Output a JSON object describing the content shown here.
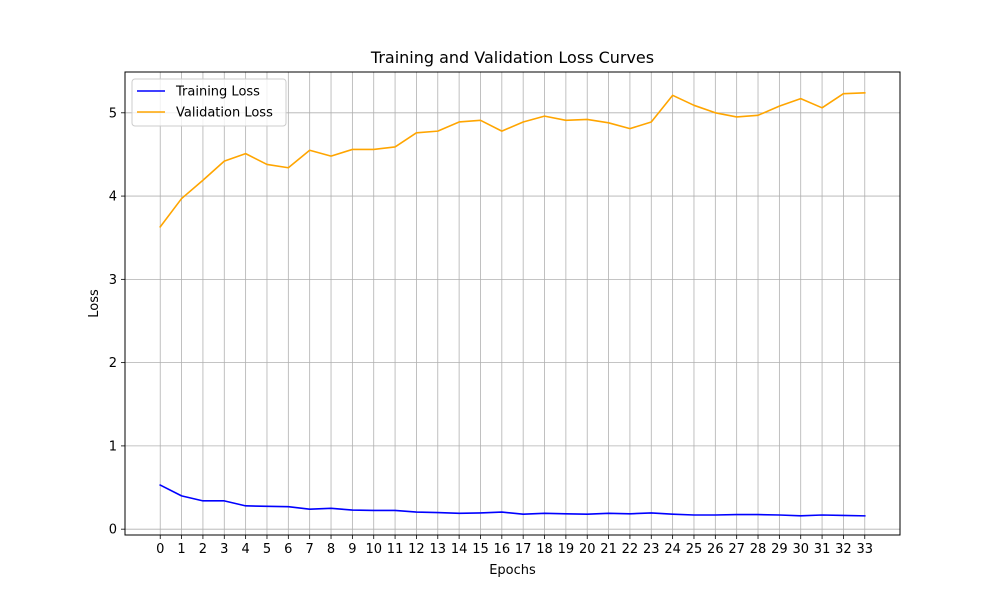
{
  "chart_data": {
    "type": "line",
    "title": "Training and Validation Loss Curves",
    "xlabel": "Epochs",
    "ylabel": "Loss",
    "x": [
      0,
      1,
      2,
      3,
      4,
      5,
      6,
      7,
      8,
      9,
      10,
      11,
      12,
      13,
      14,
      15,
      16,
      17,
      18,
      19,
      20,
      21,
      22,
      23,
      24,
      25,
      26,
      27,
      28,
      29,
      30,
      31,
      32,
      33
    ],
    "xlim": [
      -1.65,
      34.65
    ],
    "ylim": [
      -0.07,
      5.49
    ],
    "yticks": [
      0,
      1,
      2,
      3,
      4,
      5
    ],
    "grid": true,
    "legend_position": "top-left",
    "series": [
      {
        "name": "Training Loss",
        "color": "#0000ff",
        "values": [
          0.53,
          0.4,
          0.34,
          0.34,
          0.28,
          0.275,
          0.27,
          0.24,
          0.25,
          0.23,
          0.225,
          0.225,
          0.205,
          0.2,
          0.19,
          0.195,
          0.205,
          0.18,
          0.19,
          0.185,
          0.18,
          0.19,
          0.185,
          0.195,
          0.18,
          0.17,
          0.17,
          0.175,
          0.175,
          0.17,
          0.16,
          0.17,
          0.165,
          0.16
        ]
      },
      {
        "name": "Validation Loss",
        "color": "#ffa500",
        "values": [
          3.63,
          3.97,
          4.19,
          4.42,
          4.51,
          4.38,
          4.34,
          4.55,
          4.48,
          4.56,
          4.56,
          4.59,
          4.76,
          4.78,
          4.89,
          4.91,
          4.78,
          4.89,
          4.96,
          4.91,
          4.92,
          4.88,
          4.81,
          4.89,
          5.21,
          5.09,
          5.0,
          4.95,
          4.97,
          5.08,
          5.17,
          5.06,
          5.23,
          5.24
        ]
      }
    ]
  }
}
